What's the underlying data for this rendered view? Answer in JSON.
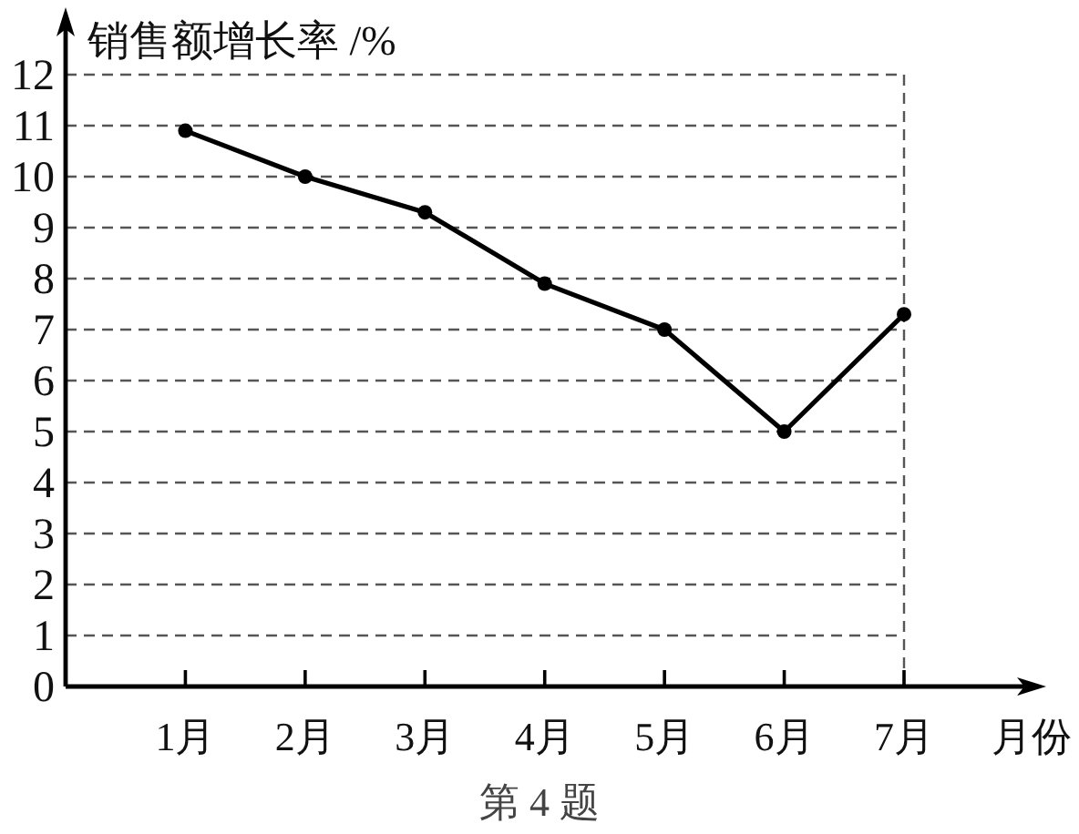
{
  "chart_data": {
    "type": "line",
    "xlabel": "月份",
    "ylabel": "销售额增长率 /%",
    "annotations": [
      "第 4 题"
    ],
    "categories": [
      "1月",
      "2月",
      "3月",
      "4月",
      "5月",
      "6月",
      "7月"
    ],
    "values": [
      10.9,
      10,
      9.3,
      7.9,
      7,
      5,
      7.3
    ],
    "color": "#000000",
    "ylim": [
      0,
      12
    ],
    "yticks": [
      0,
      1,
      2,
      3,
      4,
      5,
      6,
      7,
      8,
      9,
      10,
      11,
      12
    ],
    "grid": "y",
    "marker": "circle",
    "line_style": "solid"
  }
}
